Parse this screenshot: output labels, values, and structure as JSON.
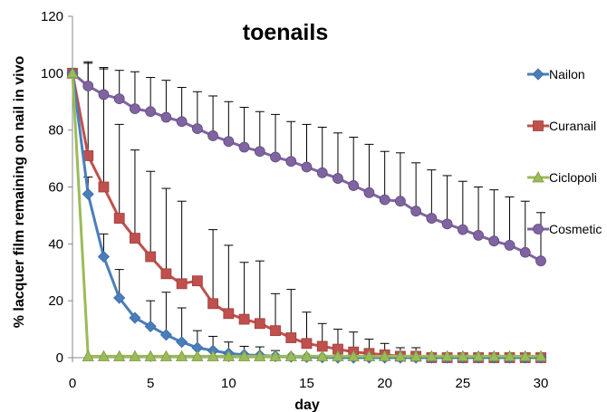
{
  "chart_data": {
    "type": "line",
    "title": "toenails",
    "xlabel": "day",
    "ylabel": "% lacquer film remaining on nail in vivo",
    "xlim": [
      0,
      30
    ],
    "ylim": [
      0,
      120
    ],
    "x_ticks": [
      0,
      5,
      10,
      15,
      20,
      25,
      30
    ],
    "y_ticks": [
      0,
      20,
      40,
      60,
      80,
      100,
      120
    ],
    "grid": false,
    "legend_position": "right",
    "series": [
      {
        "name": "Nailon",
        "color": "#4a7ebb",
        "marker": "diamond",
        "x": [
          0,
          1,
          2,
          3,
          4,
          5,
          6,
          7,
          8,
          9,
          10,
          11,
          12,
          13,
          14,
          15,
          16,
          17,
          18,
          19,
          20,
          21,
          22,
          23,
          24,
          25,
          26,
          27,
          28,
          29,
          30
        ],
        "y": [
          100,
          57.5,
          35.5,
          21,
          14,
          11,
          8,
          5.5,
          3.5,
          2.5,
          1.5,
          1,
          0.8,
          0.5,
          0.3,
          0.2,
          0.1,
          0,
          0,
          0,
          0,
          0,
          0,
          0,
          0,
          0,
          0,
          0,
          0,
          0,
          0
        ],
        "err": [
          0,
          6,
          8,
          10,
          0,
          9,
          15,
          12,
          6,
          5,
          4,
          3,
          3,
          2,
          0,
          0,
          0,
          0,
          0,
          0,
          0,
          0,
          0,
          0,
          0,
          0,
          0,
          0,
          0,
          0,
          0
        ]
      },
      {
        "name": "Curanail",
        "color": "#c0504d",
        "marker": "square",
        "x": [
          0,
          1,
          2,
          3,
          4,
          5,
          6,
          7,
          8,
          9,
          10,
          11,
          12,
          13,
          14,
          15,
          16,
          17,
          18,
          19,
          20,
          21,
          22,
          23,
          24,
          25,
          26,
          27,
          28,
          29,
          30
        ],
        "y": [
          100,
          71,
          60,
          49,
          42,
          35.5,
          29.5,
          26,
          27,
          19,
          15.5,
          13.5,
          12,
          9.5,
          7,
          5,
          4,
          3,
          2,
          1.5,
          1,
          0.5,
          0.5,
          0,
          0,
          0,
          0,
          0,
          0,
          0,
          0
        ],
        "err": [
          0,
          33,
          42,
          33,
          31,
          30,
          30,
          29,
          0,
          26,
          24,
          20,
          22,
          13,
          17,
          11,
          8,
          7,
          7,
          5,
          4,
          3,
          3,
          0,
          0,
          0,
          0,
          0,
          0,
          0,
          0
        ]
      },
      {
        "name": "Ciclopoli",
        "color": "#9bbb59",
        "marker": "triangle",
        "x": [
          0,
          1,
          2,
          3,
          4,
          5,
          6,
          7,
          8,
          9,
          10,
          11,
          12,
          13,
          14,
          15,
          16,
          17,
          18,
          19,
          20,
          21,
          22,
          23,
          24,
          25,
          26,
          27,
          28,
          29,
          30
        ],
        "y": [
          100,
          0.5,
          0.5,
          0.5,
          0.5,
          0.5,
          0.5,
          0.5,
          0.5,
          0.5,
          0.5,
          0.5,
          0.5,
          0.5,
          0.5,
          0.5,
          0.5,
          0.5,
          0.5,
          0.5,
          0.5,
          0.5,
          0.5,
          0.5,
          0.5,
          0.5,
          0.5,
          0.5,
          0.5,
          0.5,
          0.5
        ],
        "err": [
          0,
          0,
          0,
          0,
          0,
          0,
          0,
          0,
          0,
          0,
          0,
          0,
          0,
          0,
          0,
          0,
          0,
          0,
          0,
          0,
          0,
          0,
          0,
          0,
          0,
          0,
          0,
          0,
          0,
          0,
          0
        ]
      },
      {
        "name": "Cosmetic",
        "color": "#8064a2",
        "marker": "circle",
        "x": [
          0,
          1,
          2,
          3,
          4,
          5,
          6,
          7,
          8,
          9,
          10,
          11,
          12,
          13,
          14,
          15,
          16,
          17,
          18,
          19,
          20,
          21,
          22,
          23,
          24,
          25,
          26,
          27,
          28,
          29,
          30
        ],
        "y": [
          100,
          95.5,
          92.5,
          91,
          87.5,
          86.5,
          84.5,
          83,
          80.5,
          78,
          76,
          74,
          72.5,
          70.5,
          69,
          67,
          65,
          63,
          60.5,
          58,
          55.5,
          55,
          51.5,
          49,
          47,
          45,
          43,
          41,
          39.5,
          37,
          34
        ],
        "err": [
          0,
          8,
          9,
          10,
          13,
          12,
          13,
          12,
          13,
          14,
          14,
          14,
          14,
          15,
          14,
          15,
          16,
          16,
          17,
          17,
          17,
          17,
          17,
          17,
          17,
          17,
          17,
          18,
          17,
          18,
          17
        ]
      }
    ]
  }
}
